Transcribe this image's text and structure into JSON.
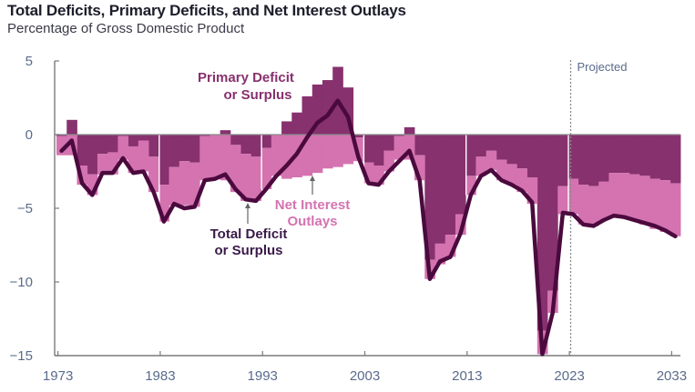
{
  "header": {
    "title": "Total Deficits, Primary Deficits, and Net Interest Outlays",
    "subtitle": "Percentage of Gross Domestic Product"
  },
  "colors": {
    "primary": "#87316e",
    "interest": "#d473b0",
    "total_line": "#4b0a3e",
    "axis": "#888888",
    "tick_text": "#5a6b8c",
    "primary_label": "#87316e",
    "interest_label": "#d473b0",
    "total_label": "#3a1a4a"
  },
  "chart_data": {
    "type": "bar",
    "title": "Total Deficits, Primary Deficits, and Net Interest Outlays",
    "subtitle": "Percentage of Gross Domestic Product",
    "xlabel": "",
    "ylabel": "Percentage of Gross Domestic Product",
    "ylim": [
      -15,
      5
    ],
    "yticks": [
      5,
      0,
      -5,
      -10,
      -15
    ],
    "ytick_labels": [
      "5",
      "0",
      "−5",
      "−10",
      "−15"
    ],
    "xticks": [
      1973,
      1983,
      1993,
      2003,
      2013,
      2023,
      2033
    ],
    "xtick_labels": [
      "1973",
      "1983",
      "1993",
      "2003",
      "2013",
      "2023",
      "2033"
    ],
    "projected_start": 2023,
    "projected_label": "Projected",
    "grid": false,
    "years": [
      1973,
      1974,
      1975,
      1976,
      1977,
      1978,
      1979,
      1980,
      1981,
      1982,
      1983,
      1984,
      1985,
      1986,
      1987,
      1988,
      1989,
      1990,
      1991,
      1992,
      1993,
      1994,
      1995,
      1996,
      1997,
      1998,
      1999,
      2000,
      2001,
      2002,
      2003,
      2004,
      2005,
      2006,
      2007,
      2008,
      2009,
      2010,
      2011,
      2012,
      2013,
      2014,
      2015,
      2016,
      2017,
      2018,
      2019,
      2020,
      2021,
      2022,
      2023,
      2024,
      2025,
      2026,
      2027,
      2028,
      2029,
      2030,
      2031,
      2032,
      2033
    ],
    "series": [
      {
        "name": "Primary Deficit or Surplus",
        "kind": "bar",
        "values": [
          -0.1,
          1.0,
          -2.1,
          -2.7,
          -1.3,
          -1.2,
          -0.1,
          -0.8,
          -0.4,
          -1.5,
          -3.4,
          -2.2,
          -1.8,
          -1.9,
          -0.1,
          0.0,
          0.3,
          -0.7,
          -1.3,
          -1.5,
          -0.9,
          0.0,
          0.9,
          1.5,
          2.6,
          3.4,
          3.7,
          4.6,
          3.2,
          -0.2,
          -1.9,
          -2.1,
          -1.1,
          -0.1,
          0.5,
          -1.4,
          -8.5,
          -7.4,
          -6.8,
          -5.4,
          -2.8,
          -1.5,
          -1.1,
          -1.7,
          -2.0,
          -2.3,
          -2.9,
          -13.3,
          -10.6,
          -3.5,
          -3.0,
          -3.4,
          -3.5,
          -3.2,
          -2.6,
          -2.6,
          -2.7,
          -2.8,
          -3.0,
          -3.1,
          -3.3
        ]
      },
      {
        "name": "Net Interest Outlays",
        "kind": "bar",
        "values": [
          1.3,
          1.4,
          1.3,
          1.4,
          1.4,
          1.5,
          1.6,
          1.8,
          2.1,
          2.4,
          2.5,
          2.6,
          3.0,
          3.0,
          3.0,
          3.0,
          3.1,
          3.2,
          3.2,
          3.0,
          2.8,
          2.8,
          3.0,
          2.9,
          2.8,
          2.6,
          2.3,
          2.2,
          2.0,
          1.6,
          1.4,
          1.3,
          1.4,
          1.6,
          1.7,
          1.7,
          1.3,
          1.4,
          1.5,
          1.4,
          1.3,
          1.3,
          1.3,
          1.4,
          1.4,
          1.6,
          1.8,
          1.6,
          1.5,
          1.9,
          2.4,
          2.7,
          2.7,
          2.6,
          2.9,
          3.0,
          3.1,
          3.3,
          3.4,
          3.5,
          3.6
        ]
      },
      {
        "name": "Total Deficit or Surplus",
        "kind": "line",
        "values": [
          -1.1,
          -0.4,
          -3.3,
          -4.1,
          -2.6,
          -2.6,
          -1.6,
          -2.6,
          -2.5,
          -3.9,
          -5.9,
          -4.7,
          -5.0,
          -4.9,
          -3.1,
          -3.0,
          -2.7,
          -3.7,
          -4.4,
          -4.5,
          -3.7,
          -2.8,
          -2.1,
          -1.3,
          -0.2,
          0.8,
          1.3,
          2.3,
          1.2,
          -1.5,
          -3.3,
          -3.4,
          -2.5,
          -1.8,
          -1.1,
          -3.1,
          -9.8,
          -8.6,
          -8.3,
          -6.7,
          -4.1,
          -2.8,
          -2.4,
          -3.1,
          -3.4,
          -3.8,
          -4.6,
          -14.9,
          -12.1,
          -5.3,
          -5.4,
          -6.1,
          -6.2,
          -5.8,
          -5.5,
          -5.6,
          -5.8,
          -6.0,
          -6.2,
          -6.5,
          -6.9
        ]
      }
    ],
    "annotations": [
      {
        "text_lines": [
          "Primary Deficit",
          "or Surplus"
        ],
        "series": "Primary Deficit or Surplus"
      },
      {
        "text_lines": [
          "Net Interest",
          "Outlays"
        ],
        "series": "Net Interest Outlays"
      },
      {
        "text_lines": [
          "Total Deficit",
          "or Surplus"
        ],
        "series": "Total Deficit or Surplus"
      }
    ],
    "decade_separators": [
      1983,
      1993,
      2003,
      2013,
      2023
    ]
  }
}
